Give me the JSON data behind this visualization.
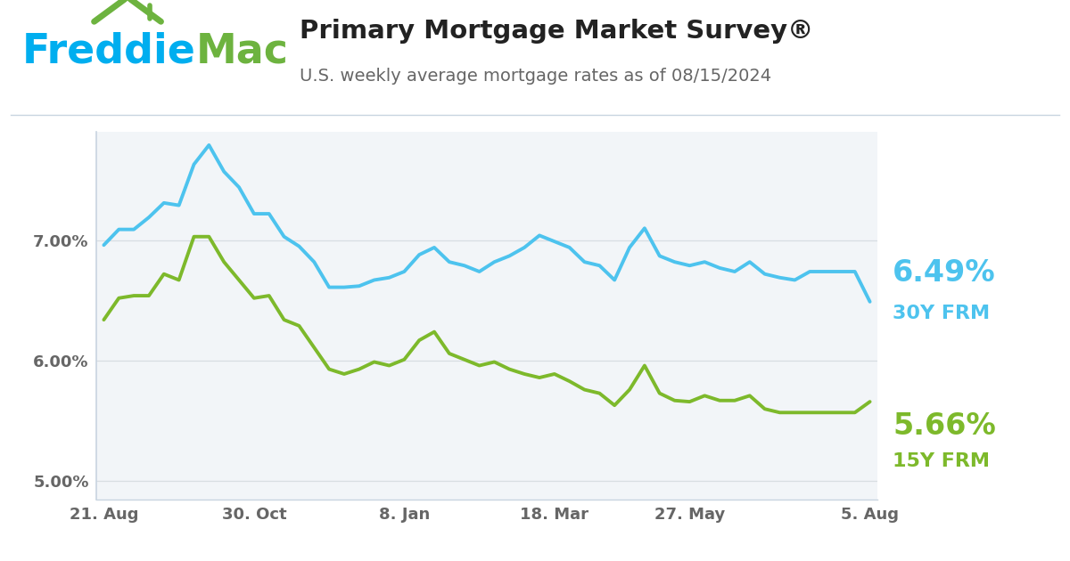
{
  "title": "Primary Mortgage Market Survey®",
  "subtitle": "U.S. weekly average mortgage rates as of 08/15/2024",
  "color_30y": "#4DC3EE",
  "color_15y": "#7DB92B",
  "label_30y": "6.49%",
  "label_15y": "5.66%",
  "sublabel_30y": "30Y FRM",
  "sublabel_15y": "15Y FRM",
  "ylim": [
    4.85,
    7.9
  ],
  "yticks": [
    5.0,
    6.0,
    7.0
  ],
  "ytick_labels": [
    "5.00%",
    "6.00%",
    "7.00%"
  ],
  "x_tick_labels": [
    "21. Aug",
    "30. Oct",
    "8. Jan",
    "18. Mar",
    "27. May",
    "5. Aug"
  ],
  "x_tick_positions": [
    0,
    10,
    20,
    30,
    39,
    51
  ],
  "background_plot": "#f2f5f8",
  "background_fig": "#ffffff",
  "rate_30y": [
    6.96,
    7.09,
    7.09,
    7.19,
    7.31,
    7.29,
    7.63,
    7.79,
    7.57,
    7.44,
    7.22,
    7.22,
    7.03,
    6.95,
    6.82,
    6.61,
    6.61,
    6.62,
    6.67,
    6.69,
    6.74,
    6.88,
    6.94,
    6.82,
    6.79,
    6.74,
    6.82,
    6.87,
    6.94,
    7.04,
    6.99,
    6.94,
    6.82,
    6.79,
    6.67,
    6.94,
    7.1,
    6.87,
    6.82,
    6.79,
    6.82,
    6.77,
    6.74,
    6.82,
    6.72,
    6.69,
    6.67,
    6.74,
    6.74,
    6.74,
    6.74,
    6.49
  ],
  "rate_15y": [
    6.34,
    6.52,
    6.54,
    6.54,
    6.72,
    6.67,
    7.03,
    7.03,
    6.82,
    6.67,
    6.52,
    6.54,
    6.34,
    6.29,
    6.11,
    5.93,
    5.89,
    5.93,
    5.99,
    5.96,
    6.01,
    6.17,
    6.24,
    6.06,
    6.01,
    5.96,
    5.99,
    5.93,
    5.89,
    5.86,
    5.89,
    5.83,
    5.76,
    5.73,
    5.63,
    5.76,
    5.96,
    5.73,
    5.67,
    5.66,
    5.71,
    5.67,
    5.67,
    5.71,
    5.6,
    5.57,
    5.57,
    5.57,
    5.57,
    5.57,
    5.57,
    5.66
  ],
  "logo_freddie_color": "#00AEEF",
  "logo_mac_color": "#6DB33F",
  "logo_roof_color": "#6DB33F",
  "grid_color": "#d8dde2",
  "border_color": "#c8d4e0",
  "tick_color": "#666666",
  "title_color": "#222222",
  "subtitle_color": "#666666"
}
